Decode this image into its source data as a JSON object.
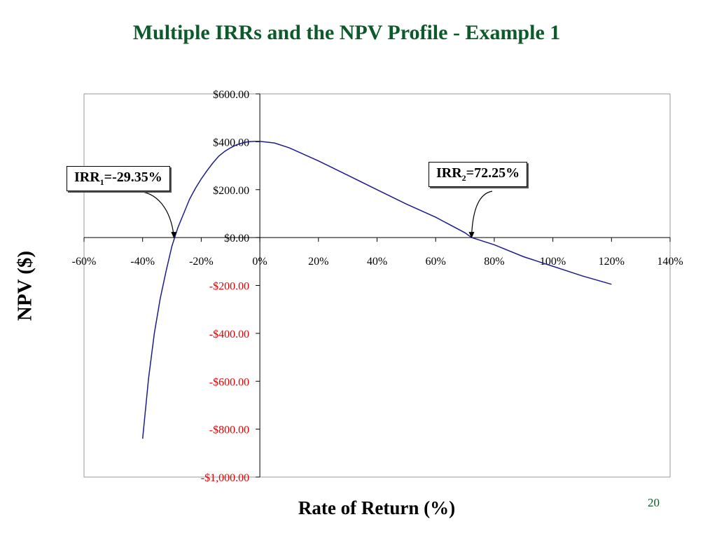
{
  "title": "Multiple IRRs and the NPV Profile - Example 1",
  "page_number": "20",
  "colors": {
    "title": "#0b5a2a",
    "curve": "#1c1c8c",
    "negative_tick": "#e00000",
    "page_number": "#0b5a2a"
  },
  "annotations": [
    {
      "id": "irr1",
      "prefix": "IRR",
      "sub": "1",
      "suffix": "=-29.35%",
      "x": -29.35,
      "y": 0
    },
    {
      "id": "irr2",
      "prefix": "IRR",
      "sub": "2",
      "suffix": "=72.25%",
      "x": 72.25,
      "y": 0
    }
  ],
  "chart_data": {
    "type": "line",
    "title": "",
    "xlabel": "Rate of Return (%)",
    "ylabel": "NPV ($)",
    "xlim": [
      -60,
      140
    ],
    "ylim": [
      -1000,
      600
    ],
    "x_ticks": [
      -60,
      -40,
      -20,
      0,
      20,
      40,
      60,
      80,
      100,
      120,
      140
    ],
    "x_tick_labels": [
      "-60%",
      "-40%",
      "-20%",
      "0%",
      "20%",
      "40%",
      "60%",
      "80%",
      "100%",
      "120%",
      "140%"
    ],
    "y_ticks": [
      600,
      400,
      200,
      0,
      -200,
      -400,
      -600,
      -800,
      -1000
    ],
    "y_tick_labels": [
      "$600.00",
      "$400.00",
      "$200.00",
      "$0.00",
      "-$200.00",
      "-$400.00",
      "-$600.00",
      "-$800.00",
      "-$1,000.00"
    ],
    "grid": false,
    "legend": "none",
    "series": [
      {
        "x": [
          -40,
          -38,
          -36,
          -34,
          -32,
          -30,
          -28,
          -26,
          -24,
          -22,
          -20,
          -18,
          -16,
          -14,
          -12,
          -10,
          -8,
          -6,
          -4,
          -2,
          0,
          5,
          10,
          20,
          30,
          40,
          50,
          60,
          70,
          72.25,
          80,
          90,
          100,
          110,
          120
        ],
        "y": [
          -840,
          -590,
          -400,
          -255,
          -140,
          -35,
          40,
          100,
          160,
          205,
          245,
          280,
          312,
          340,
          360,
          375,
          387,
          395,
          400,
          402,
          402,
          395,
          375,
          320,
          260,
          200,
          140,
          85,
          20,
          0,
          -30,
          -80,
          -120,
          -160,
          -195
        ]
      }
    ]
  }
}
